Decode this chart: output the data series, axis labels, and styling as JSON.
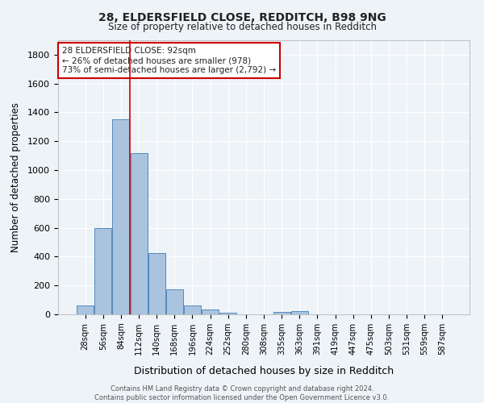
{
  "title_line1": "28, ELDERSFIELD CLOSE, REDDITCH, B98 9NG",
  "title_line2": "Size of property relative to detached houses in Redditch",
  "xlabel": "Distribution of detached houses by size in Redditch",
  "ylabel": "Number of detached properties",
  "footnote": "Contains HM Land Registry data © Crown copyright and database right 2024.\nContains public sector information licensed under the Open Government Licence v3.0.",
  "bin_labels": [
    "28sqm",
    "56sqm",
    "84sqm",
    "112sqm",
    "140sqm",
    "168sqm",
    "196sqm",
    "224sqm",
    "252sqm",
    "280sqm",
    "308sqm",
    "335sqm",
    "363sqm",
    "391sqm",
    "419sqm",
    "447sqm",
    "475sqm",
    "503sqm",
    "531sqm",
    "559sqm",
    "587sqm"
  ],
  "bar_heights": [
    60,
    600,
    1350,
    1120,
    425,
    175,
    60,
    35,
    10,
    0,
    0,
    15,
    20,
    0,
    0,
    0,
    0,
    0,
    0,
    0,
    0
  ],
  "bar_color": "#aac4e0",
  "bar_edge_color": "#5588bb",
  "background_color": "#eef3f8",
  "grid_color": "#ffffff",
  "vline_x": 2.5,
  "vline_color": "#cc0000",
  "annotation_text": "28 ELDERSFIELD CLOSE: 92sqm\n← 26% of detached houses are smaller (978)\n73% of semi-detached houses are larger (2,792) →",
  "ylim": [
    0,
    1900
  ],
  "yticks": [
    0,
    200,
    400,
    600,
    800,
    1000,
    1200,
    1400,
    1600,
    1800
  ]
}
